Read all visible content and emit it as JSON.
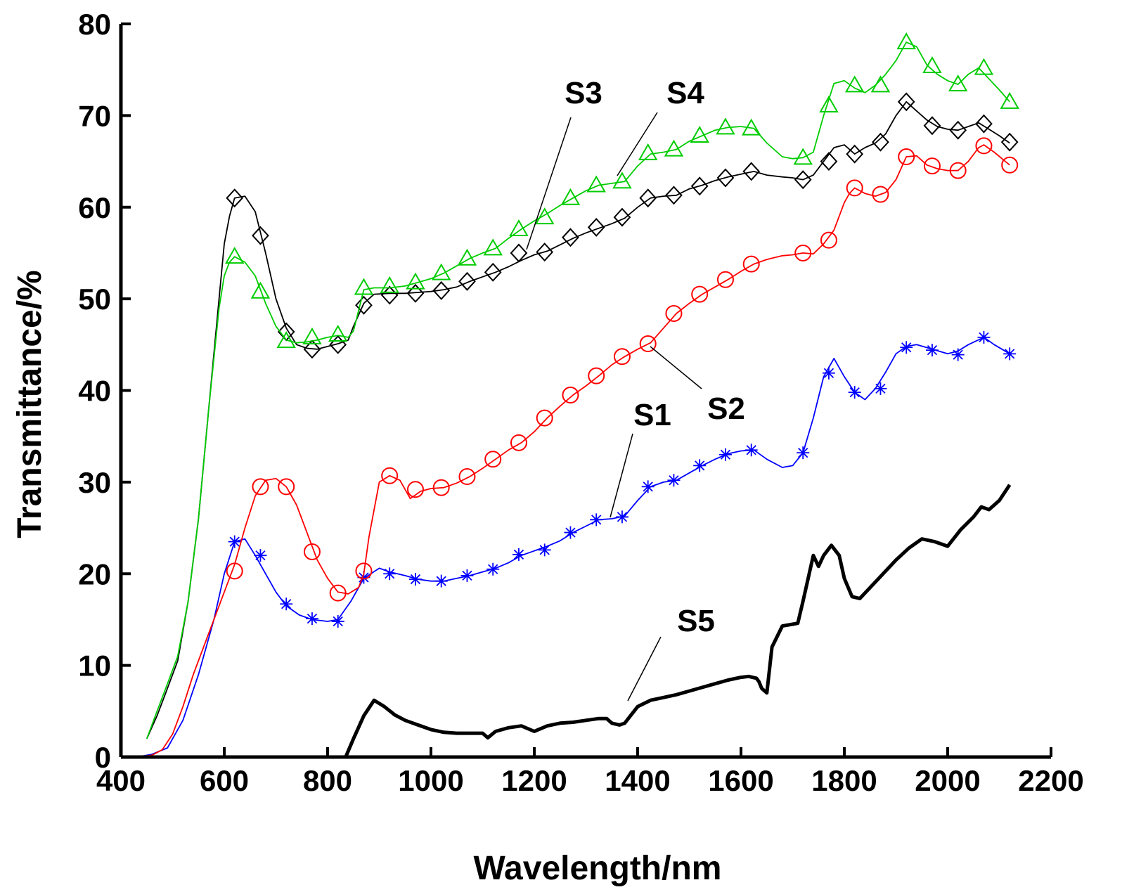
{
  "chart_data": {
    "type": "line",
    "title": "",
    "xlabel": "Wavelength/nm",
    "ylabel": "Transmittance/%",
    "xlim": [
      400,
      2200
    ],
    "ylim": [
      0,
      80
    ],
    "xticks": [
      400,
      600,
      800,
      1000,
      1200,
      1400,
      1600,
      1800,
      2000,
      2200
    ],
    "yticks": [
      0,
      10,
      20,
      30,
      40,
      50,
      60,
      70,
      80
    ],
    "grid": false,
    "legend": "inline labels",
    "series": [
      {
        "name": "S1",
        "color": "#0000ff",
        "marker": "asterisk",
        "x": [
          430,
          460,
          490,
          520,
          550,
          580,
          600,
          620,
          640,
          660,
          680,
          700,
          720,
          745,
          770,
          800,
          820,
          845,
          870,
          900,
          920,
          950,
          975,
          1000,
          1025,
          1050,
          1075,
          1100,
          1125,
          1150,
          1175,
          1200,
          1225,
          1250,
          1275,
          1300,
          1325,
          1350,
          1375,
          1400,
          1425,
          1450,
          1475,
          1500,
          1525,
          1550,
          1575,
          1600,
          1625,
          1650,
          1680,
          1700,
          1720,
          1740,
          1760,
          1770,
          1780,
          1800,
          1820,
          1840,
          1860,
          1880,
          1900,
          1920,
          1940,
          1970,
          2000,
          2020,
          2040,
          2070,
          2090,
          2120
        ],
        "y": [
          0,
          0.3,
          1,
          4,
          9,
          15,
          20,
          23.5,
          23.8,
          22,
          20,
          18,
          16.5,
          15.5,
          15,
          14.8,
          15,
          17,
          19.5,
          20.6,
          20.2,
          19.8,
          19.4,
          19.2,
          19.2,
          19.5,
          19.8,
          20.2,
          20.6,
          21.2,
          22.0,
          22.5,
          23.0,
          23.6,
          24.5,
          25.2,
          25.9,
          26.0,
          26.3,
          28.0,
          29.5,
          30.0,
          30.2,
          31.0,
          31.8,
          32.5,
          33.1,
          33.4,
          33.5,
          32.5,
          31.6,
          31.8,
          33.2,
          37.0,
          41.5,
          42.5,
          43.5,
          41.5,
          39.8,
          39.0,
          40.2,
          42.0,
          44.0,
          44.8,
          45.0,
          44.5,
          44.0,
          44.3,
          45.0,
          45.8,
          45.0,
          44.0
        ],
        "marker_x": [
          620,
          670,
          720,
          770,
          820,
          870,
          920,
          970,
          1020,
          1070,
          1120,
          1170,
          1220,
          1270,
          1320,
          1370,
          1420,
          1470,
          1520,
          1570,
          1620,
          1720,
          1770,
          1820,
          1870,
          1920,
          1970,
          2020,
          2070,
          2120
        ],
        "marker_y": [
          23.5,
          22,
          16.7,
          15.1,
          14.8,
          19.6,
          20.0,
          19.4,
          19.2,
          19.8,
          20.5,
          22.1,
          22.6,
          24.5,
          25.9,
          26.2,
          29.5,
          30.2,
          31.8,
          33.0,
          33.5,
          33.2,
          41.9,
          39.8,
          40.2,
          44.7,
          44.4,
          43.9,
          45.8,
          44.0
        ]
      },
      {
        "name": "S2",
        "color": "#ff0000",
        "marker": "circle",
        "x": [
          430,
          460,
          480,
          500,
          520,
          540,
          560,
          580,
          600,
          620,
          640,
          660,
          680,
          700,
          720,
          740,
          760,
          780,
          800,
          820,
          840,
          860,
          870,
          880,
          900,
          920,
          940,
          960,
          980,
          1000,
          1025,
          1050,
          1075,
          1100,
          1125,
          1150,
          1175,
          1200,
          1225,
          1250,
          1275,
          1300,
          1325,
          1350,
          1375,
          1400,
          1425,
          1450,
          1475,
          1500,
          1525,
          1550,
          1575,
          1600,
          1625,
          1650,
          1680,
          1700,
          1720,
          1740,
          1760,
          1780,
          1800,
          1810,
          1820,
          1840,
          1860,
          1880,
          1900,
          1920,
          1940,
          1960,
          1980,
          2000,
          2020,
          2040,
          2060,
          2070,
          2090,
          2120
        ],
        "y": [
          0,
          0.2,
          0.8,
          2.5,
          5.5,
          9,
          12,
          15,
          18,
          21,
          25,
          28.5,
          30.2,
          30.4,
          29.5,
          27.5,
          24.5,
          21.5,
          19.5,
          18,
          17.8,
          18.5,
          20,
          24,
          30,
          30.7,
          30.2,
          28.2,
          29.0,
          29.3,
          29.4,
          29.9,
          30.6,
          31.5,
          32.5,
          33.5,
          34.3,
          35.5,
          37.0,
          38.3,
          39.5,
          40.5,
          41.6,
          42.8,
          43.7,
          44.5,
          45.2,
          46.8,
          48.4,
          49.5,
          50.5,
          51.3,
          52.1,
          53.0,
          53.8,
          54.3,
          54.7,
          54.8,
          55.0,
          54.9,
          56.0,
          57.5,
          60.5,
          61.5,
          62.1,
          61.5,
          61.2,
          61.6,
          63.0,
          65.5,
          65.6,
          64.6,
          64.2,
          64.0,
          64.0,
          65.0,
          66.5,
          66.8,
          66.0,
          64.6
        ],
        "marker_x": [
          620,
          670,
          720,
          770,
          820,
          870,
          920,
          970,
          1020,
          1070,
          1120,
          1170,
          1220,
          1270,
          1320,
          1370,
          1420,
          1470,
          1520,
          1570,
          1620,
          1720,
          1770,
          1820,
          1870,
          1920,
          1970,
          2020,
          2070,
          2120
        ],
        "marker_y": [
          20.3,
          29.5,
          29.5,
          22.4,
          17.9,
          20.3,
          30.7,
          29.2,
          29.4,
          30.6,
          32.5,
          34.3,
          37.0,
          39.5,
          41.6,
          43.7,
          45.1,
          48.4,
          50.5,
          52.1,
          53.8,
          55.0,
          56.4,
          62.1,
          61.4,
          65.5,
          64.5,
          64.0,
          66.7,
          64.6
        ]
      },
      {
        "name": "S3",
        "color": "#000000",
        "marker": "diamond",
        "x": [
          450,
          470,
          490,
          510,
          530,
          550,
          570,
          590,
          600,
          610,
          620,
          640,
          660,
          680,
          700,
          720,
          740,
          760,
          780,
          800,
          820,
          840,
          850,
          870,
          890,
          920,
          950,
          975,
          1000,
          1025,
          1050,
          1075,
          1100,
          1125,
          1150,
          1175,
          1200,
          1225,
          1250,
          1275,
          1300,
          1325,
          1350,
          1375,
          1400,
          1425,
          1450,
          1475,
          1500,
          1525,
          1550,
          1575,
          1600,
          1625,
          1650,
          1680,
          1700,
          1720,
          1740,
          1760,
          1780,
          1800,
          1820,
          1840,
          1860,
          1880,
          1900,
          1920,
          1940,
          1960,
          1980,
          2000,
          2020,
          2040,
          2060,
          2080,
          2100,
          2120
        ],
        "y": [
          2,
          4.5,
          7.5,
          10.5,
          17,
          26,
          38,
          50,
          56,
          59,
          61,
          61.2,
          59.5,
          55,
          50,
          46.8,
          45,
          44.6,
          44.5,
          44.8,
          45.1,
          45.5,
          47,
          49.5,
          50.5,
          50.6,
          50.6,
          50.7,
          50.8,
          51.0,
          51.3,
          51.9,
          52.4,
          52.9,
          53.5,
          54.2,
          54.8,
          55.2,
          55.9,
          56.6,
          57.2,
          57.7,
          58.2,
          58.8,
          60.0,
          61.0,
          61.2,
          61.3,
          62.0,
          62.4,
          62.9,
          63.3,
          63.6,
          63.9,
          63.5,
          63.3,
          63.2,
          63.0,
          63.5,
          65.0,
          66.5,
          66.8,
          65.8,
          66.5,
          67.0,
          68.0,
          70.0,
          71.5,
          70.5,
          69.5,
          68.8,
          68.5,
          68.4,
          68.8,
          69.2,
          68.5,
          67.8,
          67.0
        ],
        "marker_x": [
          620,
          670,
          720,
          770,
          820,
          870,
          920,
          970,
          1020,
          1070,
          1120,
          1170,
          1220,
          1270,
          1320,
          1370,
          1420,
          1470,
          1520,
          1570,
          1620,
          1720,
          1770,
          1820,
          1870,
          1920,
          1970,
          2020,
          2070,
          2120
        ],
        "marker_y": [
          61.0,
          56.9,
          46.4,
          44.5,
          45.0,
          49.3,
          50.4,
          50.6,
          50.9,
          51.9,
          52.9,
          55.0,
          55.1,
          56.7,
          57.8,
          58.9,
          61.0,
          61.3,
          62.3,
          63.2,
          63.9,
          63.0,
          65.0,
          65.8,
          67.1,
          71.5,
          68.9,
          68.4,
          69.1,
          67.1
        ]
      },
      {
        "name": "S4",
        "color": "#00cc00",
        "marker": "triangle",
        "x": [
          450,
          470,
          490,
          510,
          530,
          550,
          570,
          590,
          600,
          610,
          620,
          640,
          660,
          680,
          700,
          720,
          740,
          760,
          780,
          800,
          820,
          840,
          850,
          870,
          890,
          920,
          950,
          975,
          1000,
          1025,
          1050,
          1075,
          1100,
          1125,
          1150,
          1175,
          1200,
          1225,
          1250,
          1275,
          1300,
          1325,
          1350,
          1375,
          1400,
          1425,
          1450,
          1475,
          1500,
          1525,
          1550,
          1575,
          1600,
          1625,
          1650,
          1680,
          1700,
          1720,
          1740,
          1760,
          1780,
          1800,
          1820,
          1840,
          1860,
          1880,
          1900,
          1920,
          1940,
          1960,
          1980,
          2000,
          2020,
          2040,
          2060,
          2080,
          2100,
          2120
        ],
        "y": [
          2,
          5,
          8,
          11,
          17,
          26,
          38,
          49,
          52.5,
          54,
          54.6,
          54.0,
          52.5,
          49.5,
          47,
          45.5,
          45.2,
          45.3,
          45.5,
          45.8,
          46.0,
          45.8,
          46.5,
          51.0,
          51.2,
          51.2,
          51.4,
          51.8,
          52.2,
          52.8,
          53.6,
          54.4,
          55.0,
          55.5,
          56.6,
          57.6,
          58.5,
          59.3,
          60.2,
          61.0,
          61.8,
          62.4,
          62.6,
          62.8,
          64.5,
          65.8,
          66.0,
          66.3,
          67.2,
          67.8,
          68.4,
          68.7,
          68.8,
          68.6,
          67.0,
          65.5,
          65.3,
          65.4,
          66.0,
          70.0,
          73.5,
          73.8,
          73.0,
          72.5,
          73.3,
          74.5,
          76.0,
          78.0,
          77.5,
          75.5,
          74.5,
          73.8,
          73.4,
          74.5,
          75.2,
          74.0,
          72.8,
          71.5
        ],
        "marker_x": [
          620,
          670,
          720,
          770,
          820,
          870,
          920,
          970,
          1020,
          1070,
          1120,
          1170,
          1220,
          1270,
          1320,
          1370,
          1420,
          1470,
          1520,
          1570,
          1620,
          1720,
          1770,
          1820,
          1870,
          1920,
          1970,
          2020,
          2070,
          2120
        ],
        "marker_y": [
          54.6,
          50.8,
          45.4,
          45.8,
          46.1,
          51.2,
          51.4,
          51.8,
          52.8,
          54.4,
          55.5,
          57.6,
          58.9,
          61.0,
          62.4,
          62.8,
          65.9,
          66.3,
          67.8,
          68.7,
          68.6,
          65.4,
          71.1,
          73.3,
          73.3,
          78.0,
          75.4,
          73.4,
          75.2,
          71.5
        ]
      },
      {
        "name": "S5",
        "color": "#000000",
        "marker": "none",
        "x": [
          835,
          850,
          870,
          890,
          910,
          930,
          950,
          975,
          1000,
          1025,
          1050,
          1075,
          1100,
          1110,
          1125,
          1150,
          1175,
          1200,
          1225,
          1250,
          1275,
          1300,
          1325,
          1340,
          1350,
          1365,
          1375,
          1400,
          1425,
          1450,
          1475,
          1500,
          1525,
          1550,
          1575,
          1600,
          1615,
          1630,
          1635,
          1640,
          1650,
          1660,
          1680,
          1700,
          1710,
          1720,
          1740,
          1750,
          1760,
          1775,
          1790,
          1800,
          1815,
          1830,
          1850,
          1875,
          1900,
          1925,
          1950,
          1975,
          2000,
          2025,
          2050,
          2065,
          2080,
          2100,
          2120
        ],
        "y": [
          0,
          2,
          4.5,
          6.2,
          5.5,
          4.6,
          4.0,
          3.5,
          3.0,
          2.7,
          2.6,
          2.6,
          2.6,
          2.1,
          2.8,
          3.2,
          3.4,
          2.8,
          3.4,
          3.7,
          3.8,
          4.0,
          4.2,
          4.2,
          3.7,
          3.5,
          3.7,
          5.5,
          6.2,
          6.5,
          6.8,
          7.2,
          7.6,
          8.0,
          8.4,
          8.7,
          8.8,
          8.6,
          8.2,
          7.5,
          7.0,
          12.0,
          14.3,
          14.5,
          14.6,
          17.0,
          22.0,
          20.8,
          22.0,
          23.1,
          22.0,
          19.5,
          17.5,
          17.3,
          18.5,
          20.0,
          21.5,
          22.8,
          23.8,
          23.5,
          23.0,
          24.8,
          26.2,
          27.3,
          27.0,
          28.0,
          29.7
        ]
      }
    ],
    "annotations": [
      {
        "text": "S1",
        "series": "S1",
        "color": "#000000"
      },
      {
        "text": "S2",
        "series": "S2",
        "color": "#000000"
      },
      {
        "text": "S3",
        "series": "S3",
        "color": "#000000"
      },
      {
        "text": "S4",
        "series": "S4",
        "color": "#000000"
      },
      {
        "text": "S5",
        "series": "S5",
        "color": "#000000"
      }
    ]
  }
}
